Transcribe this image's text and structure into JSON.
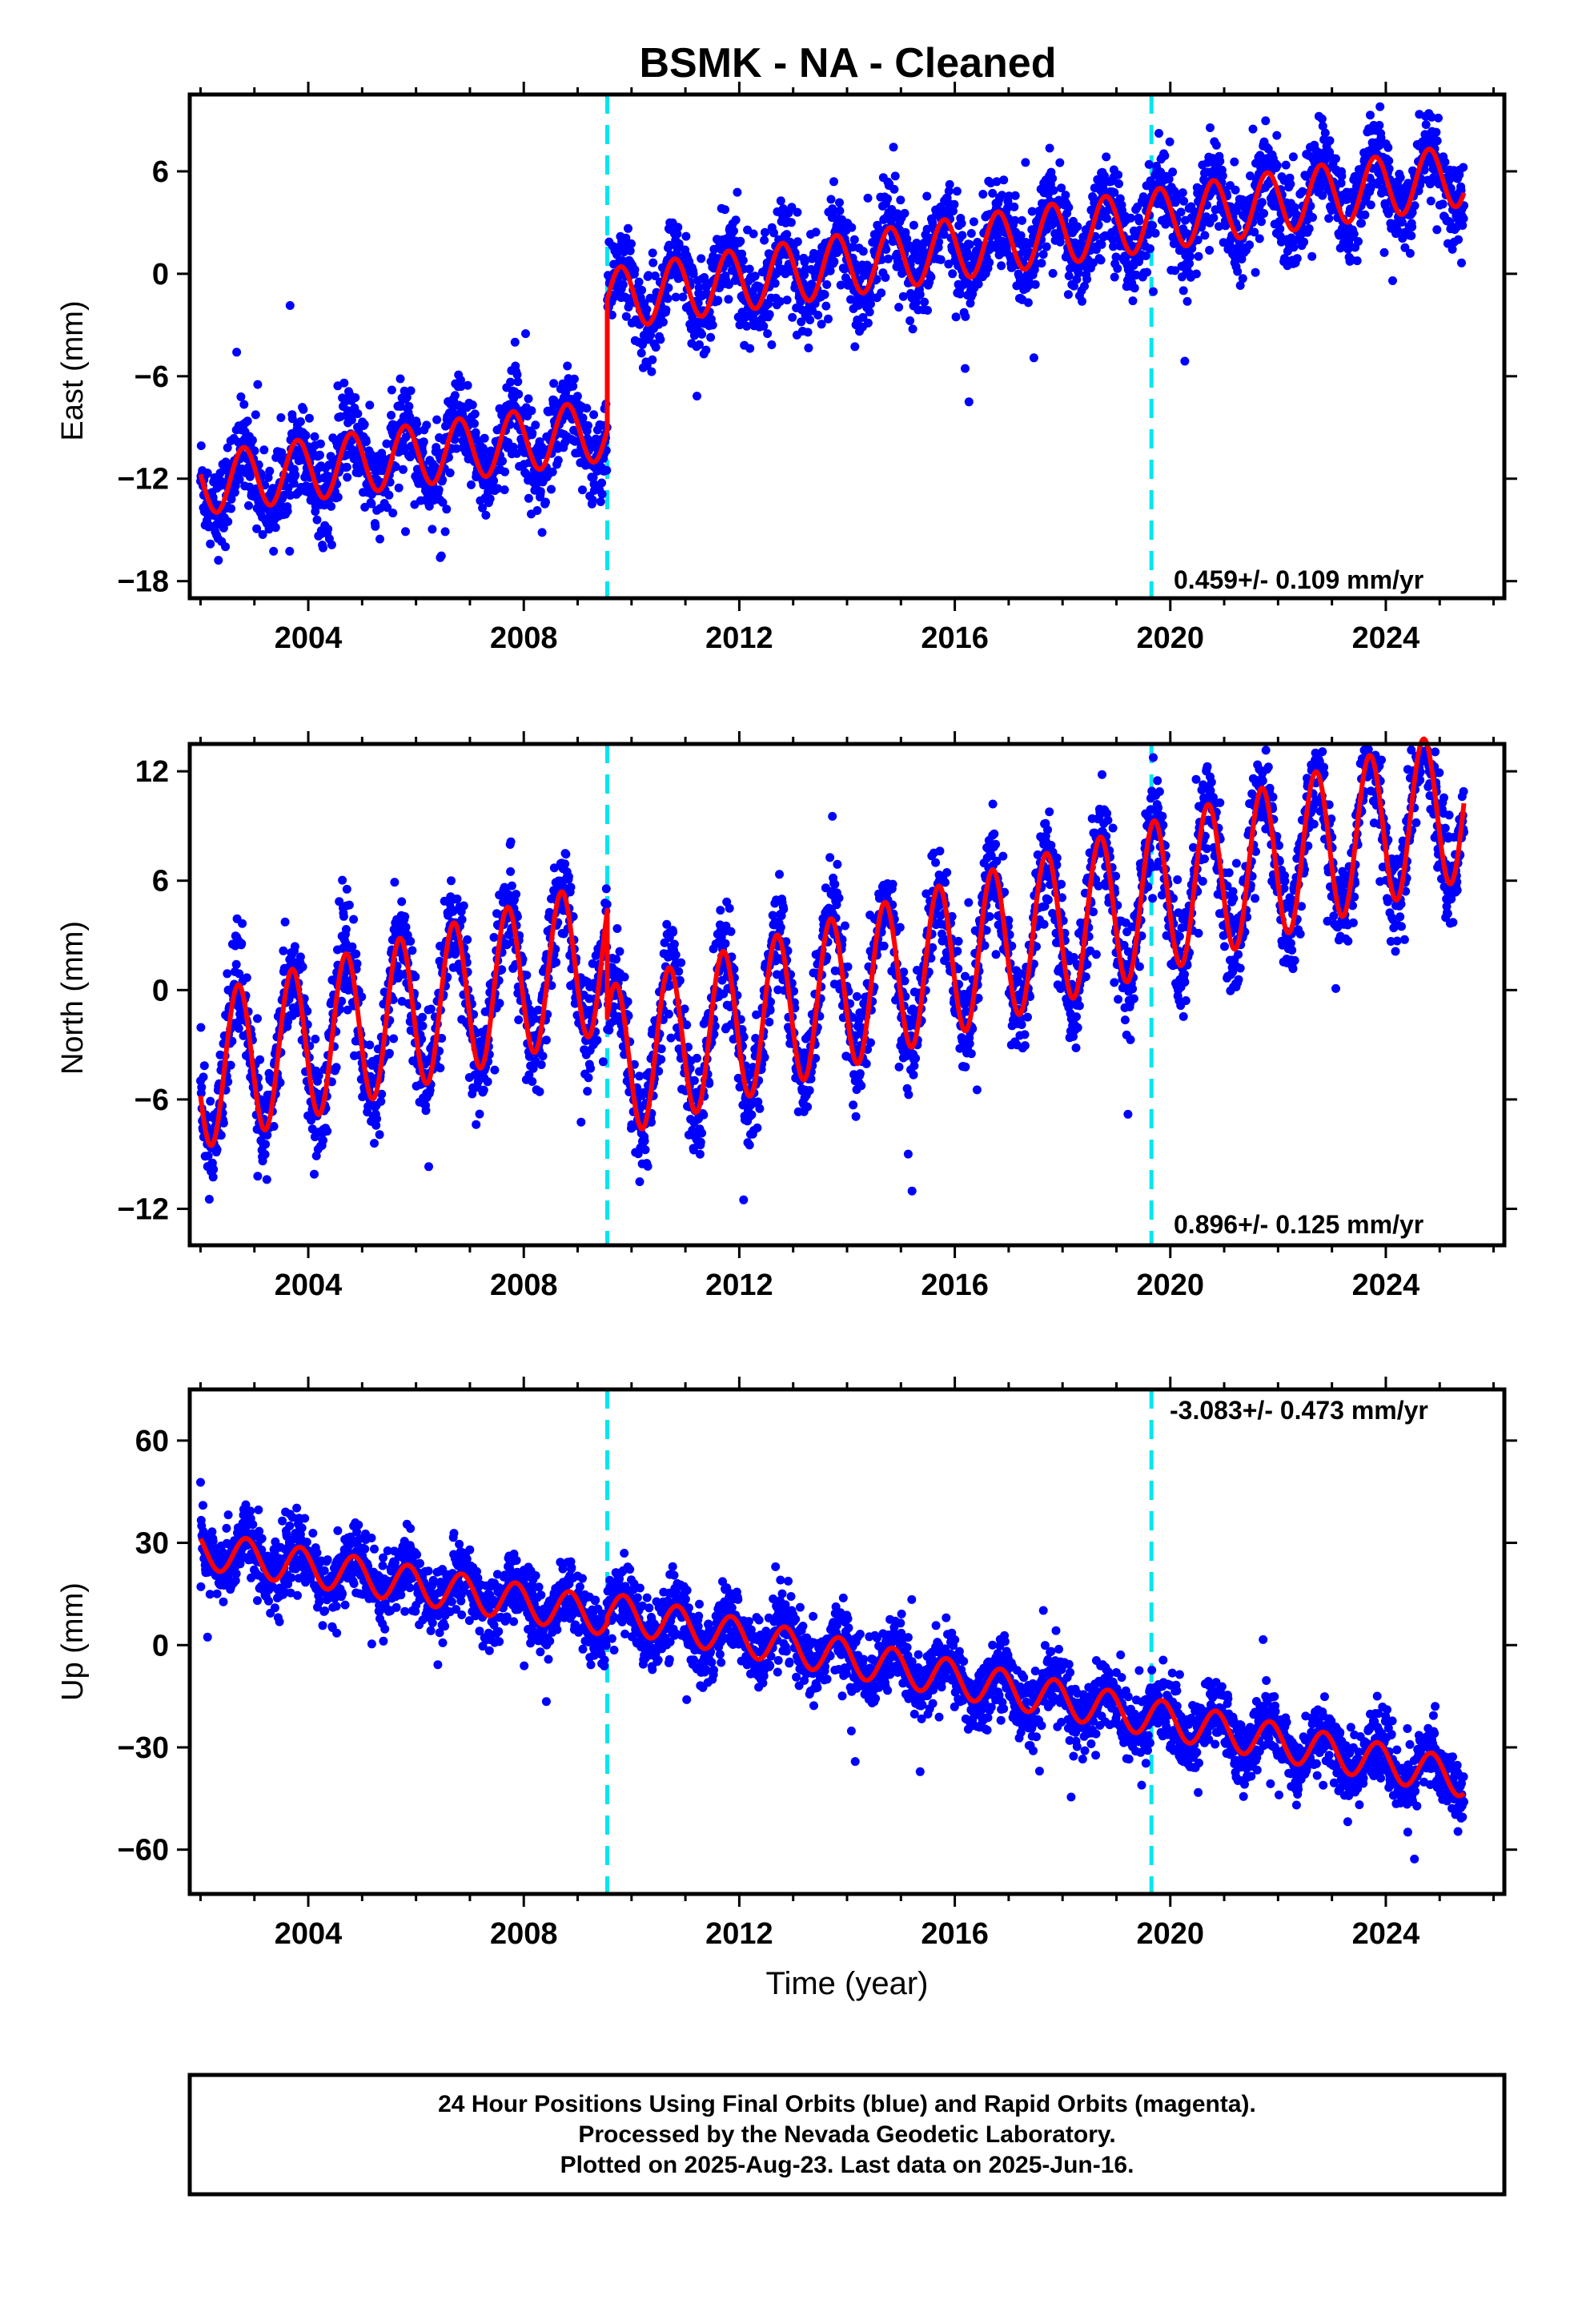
{
  "chart_data": [
    {
      "type": "scatter",
      "title": "BSMK  - NA - Cleaned",
      "xlabel": "",
      "ylabel": "East (mm)",
      "xlim": [
        2001.8,
        2026.2
      ],
      "ylim": [
        -19,
        10.5
      ],
      "xticks": [
        2004,
        2008,
        2012,
        2016,
        2020,
        2024
      ],
      "yticks": [
        -18,
        -12,
        -6,
        0,
        6
      ],
      "grid": false,
      "rate_label": "0.459+/- 0.109 mm/yr",
      "rate_position": "bottom-right",
      "breaks": [
        2009.55,
        2019.65
      ],
      "model": {
        "start": 2002.0,
        "end": 2025.45,
        "break_year": 2009.55,
        "before_offset": -12.3,
        "before_slope": 0.42,
        "after_offset": -1.5,
        "after_slope": 0.459,
        "amplitude": 1.8,
        "phase": 0.55,
        "scatter": 1.3
      },
      "series": [
        {
          "name": "Final Orbits",
          "marker": "dot",
          "color": "#0000ff"
        },
        {
          "name": "Model",
          "line": true,
          "color": "#ff0000"
        }
      ]
    },
    {
      "type": "scatter",
      "title": "",
      "xlabel": "",
      "ylabel": "North (mm)",
      "xlim": [
        2001.8,
        2026.2
      ],
      "ylim": [
        -14,
        13.5
      ],
      "xticks": [
        2004,
        2008,
        2012,
        2016,
        2020,
        2024
      ],
      "yticks": [
        -12,
        -6,
        0,
        6,
        12
      ],
      "grid": false,
      "rate_label": "0.896+/- 0.125 mm/yr",
      "rate_position": "bottom-right",
      "breaks": [
        2009.55,
        2019.65
      ],
      "model": {
        "start": 2002.0,
        "end": 2025.45,
        "break_year": 2009.55,
        "before_offset": -4.5,
        "before_slope": 0.85,
        "after_offset": -4.0,
        "after_slope": 0.896,
        "amplitude": 4.2,
        "phase": 0.45,
        "scatter": 1.4
      },
      "series": [
        {
          "name": "Final Orbits",
          "marker": "dot",
          "color": "#0000ff"
        },
        {
          "name": "Model",
          "line": true,
          "color": "#ff0000"
        }
      ]
    },
    {
      "type": "scatter",
      "title": "",
      "xlabel": "Time (year)",
      "ylabel": "Up (mm)",
      "xlim": [
        2001.8,
        2026.2
      ],
      "ylim": [
        -73,
        75
      ],
      "xticks": [
        2004,
        2008,
        2012,
        2016,
        2020,
        2024
      ],
      "yticks": [
        -60,
        -30,
        0,
        30,
        60
      ],
      "grid": false,
      "rate_label": "-3.083+/- 0.473 mm/yr",
      "rate_position": "top-right",
      "breaks": [
        2009.55,
        2019.65
      ],
      "model": {
        "start": 2002.0,
        "end": 2025.45,
        "break_year": 2009.55,
        "before_offset": 28.0,
        "before_slope": -2.6,
        "after_offset": 10.0,
        "after_slope": -3.083,
        "amplitude": 5.5,
        "phase": 0.6,
        "scatter": 5.0
      },
      "series": [
        {
          "name": "Final Orbits",
          "marker": "dot",
          "color": "#0000ff"
        },
        {
          "name": "Model",
          "line": true,
          "color": "#ff0000"
        }
      ]
    }
  ],
  "footer": {
    "line1": "24 Hour Positions Using Final Orbits (blue) and Rapid Orbits (magenta).",
    "line2": "Processed by the Nevada Geodetic Laboratory.",
    "line3": "Plotted on 2025-Aug-23. Last data on 2025-Jun-16."
  },
  "colors": {
    "points": "#0000ff",
    "model": "#ff0000",
    "breaks": "#00e5ee",
    "frame": "#000000"
  }
}
